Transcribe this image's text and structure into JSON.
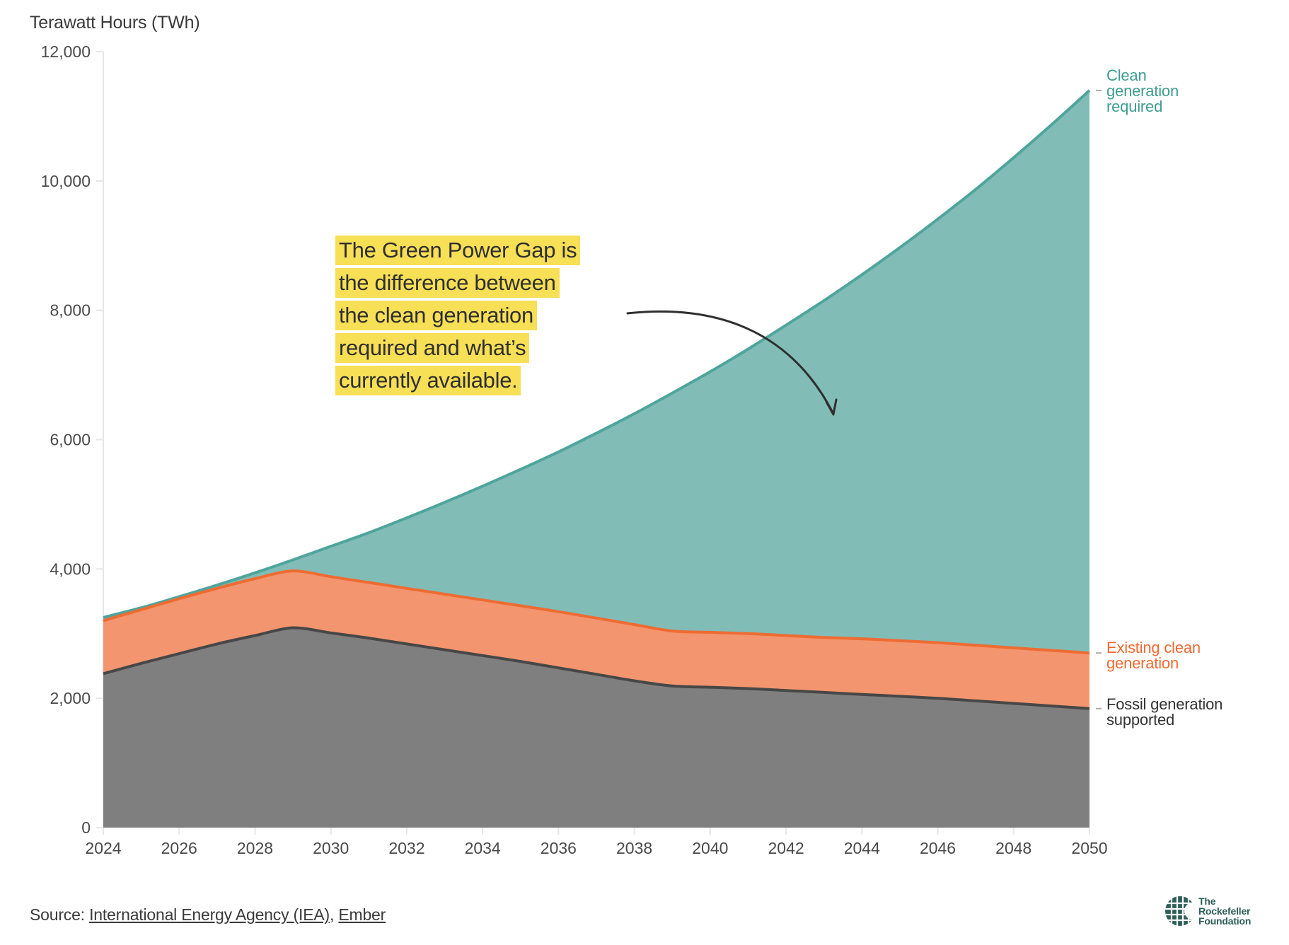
{
  "chart_data": {
    "type": "area",
    "stacked_display": true,
    "title": "",
    "ylabel": "Terawatt Hours (TWh)",
    "xlabel": "",
    "xlim": [
      2024,
      2050
    ],
    "ylim": [
      0,
      12000
    ],
    "x_ticks": [
      "2024",
      "2026",
      "2028",
      "2030",
      "2032",
      "2034",
      "2036",
      "2038",
      "2040",
      "2042",
      "2044",
      "2046",
      "2048",
      "2050"
    ],
    "y_ticks": [
      "0",
      "2,000",
      "4,000",
      "6,000",
      "8,000",
      "10,000",
      "12,000"
    ],
    "y_tick_values": [
      0,
      2000,
      4000,
      6000,
      8000,
      10000,
      12000
    ],
    "grid": false,
    "legend": "inline-right",
    "x": [
      2024,
      2025,
      2026,
      2027,
      2028,
      2029,
      2030,
      2031,
      2032,
      2033,
      2034,
      2035,
      2036,
      2037,
      2038,
      2039,
      2040,
      2041,
      2042,
      2043,
      2044,
      2045,
      2046,
      2047,
      2048,
      2049,
      2050
    ],
    "series": [
      {
        "name": "Clean generation required",
        "color": "#4FA59B",
        "fill": "#81BDB6",
        "values": [
          3250,
          3400,
          3570,
          3750,
          3940,
          4140,
          4350,
          4560,
          4790,
          5030,
          5280,
          5540,
          5810,
          6100,
          6400,
          6720,
          7050,
          7400,
          7770,
          8150,
          8550,
          8970,
          9410,
          9870,
          10360,
          10870,
          11400
        ]
      },
      {
        "name": "Existing clean generation",
        "color": "#EE6B32",
        "fill": "#F3956E",
        "values": [
          3200,
          3370,
          3540,
          3700,
          3850,
          3970,
          3880,
          3790,
          3700,
          3610,
          3520,
          3430,
          3340,
          3240,
          3140,
          3040,
          3020,
          3000,
          2970,
          2940,
          2920,
          2890,
          2860,
          2820,
          2780,
          2740,
          2700
        ]
      },
      {
        "name": "Fossil generation supported",
        "color": "#474747",
        "fill": "#7F7F7F",
        "values": [
          2380,
          2540,
          2690,
          2840,
          2970,
          3090,
          3010,
          2930,
          2840,
          2750,
          2660,
          2570,
          2470,
          2370,
          2270,
          2190,
          2170,
          2150,
          2120,
          2090,
          2060,
          2030,
          2000,
          1960,
          1920,
          1880,
          1840
        ]
      }
    ],
    "annotations": [
      "The Green Power Gap is the difference between the clean generation required and what’s currently available."
    ]
  },
  "labels": {
    "y_axis_title": "Terawatt Hours (TWh)",
    "clean_required": [
      "Clean",
      "generation",
      "required"
    ],
    "existing_clean": [
      "Existing clean",
      "generation"
    ],
    "fossil": [
      "Fossil generation",
      "supported"
    ]
  },
  "annotation": {
    "lines": [
      "The Green Power Gap is",
      "the difference between",
      "the clean generation",
      "required and what’s",
      "currently available."
    ],
    "highlight_color": "#F7DF56"
  },
  "source": {
    "prefix": "Source:",
    "links": [
      "International Energy Agency (IEA)",
      "Ember"
    ],
    "separator": ","
  },
  "logo": {
    "lines": [
      "The",
      "Rockefeller",
      "Foundation"
    ],
    "color": "#2E5E57"
  }
}
